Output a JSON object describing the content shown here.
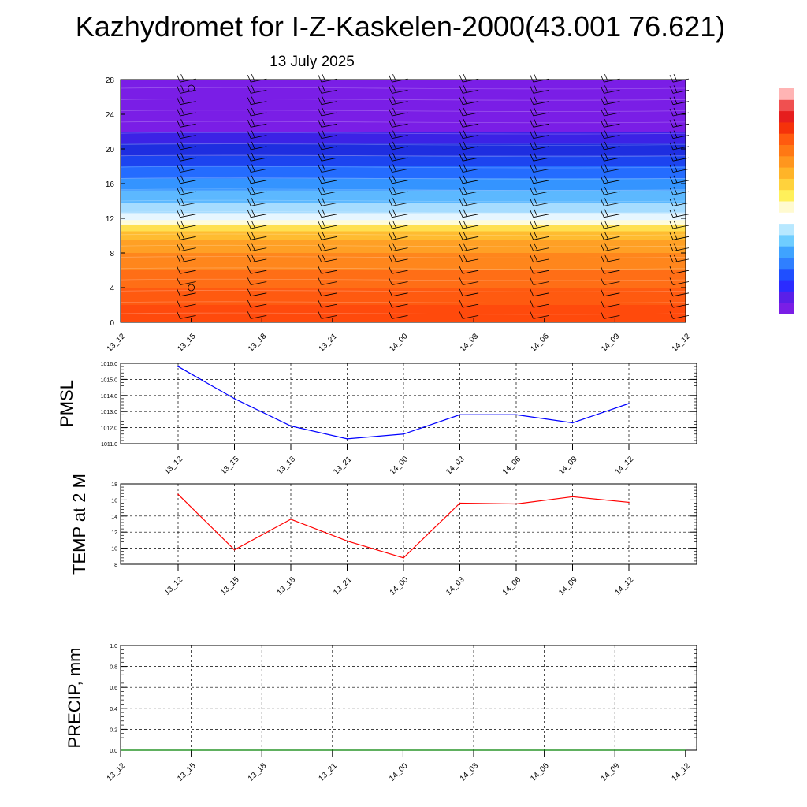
{
  "title": "Kazhydromet for I-Z-Kaskelen-2000(43.001 76.621)",
  "subtitle": "13 July 2025",
  "colorbar_colors": [
    "#7a1ee6",
    "#5a1fe8",
    "#2b2bff",
    "#1f4fff",
    "#2f7fff",
    "#3fa3ff",
    "#6fcdff",
    "#b8e8ff",
    "#ffffff",
    "#fffad0",
    "#fff05a",
    "#ffd23c",
    "#ffb428",
    "#ff961e",
    "#ff7814",
    "#ff5a0f",
    "#f5320a",
    "#e61e1e",
    "#f05050",
    "#ffb4b4"
  ],
  "chart_data": [
    {
      "type": "heatmap",
      "name": "cross-section",
      "x": [
        "13_12",
        "13_15",
        "13_18",
        "13_21",
        "14_00",
        "14_03",
        "14_06",
        "14_09",
        "14_12"
      ],
      "yticks": [
        "0",
        "4",
        "8",
        "12",
        "16",
        "20",
        "24",
        "28"
      ],
      "ylim": [
        0,
        28
      ],
      "bands": [
        {
          "from": 0,
          "to": 2,
          "color": "#ff4a0c"
        },
        {
          "from": 2,
          "to": 4,
          "color": "#ff5a10"
        },
        {
          "from": 4,
          "to": 6,
          "color": "#ff6e16"
        },
        {
          "from": 6,
          "to": 8,
          "color": "#ff861c"
        },
        {
          "from": 8,
          "to": 9.5,
          "color": "#ffa025"
        },
        {
          "from": 9.5,
          "to": 10.5,
          "color": "#ffbc30"
        },
        {
          "from": 10.5,
          "to": 11.2,
          "color": "#ffe050"
        },
        {
          "from": 11.2,
          "to": 11.8,
          "color": "#fffcd8"
        },
        {
          "from": 11.8,
          "to": 12.6,
          "color": "#e6f6ff"
        },
        {
          "from": 12.6,
          "to": 13.8,
          "color": "#a6dcff"
        },
        {
          "from": 13.8,
          "to": 15.2,
          "color": "#5cb8ff"
        },
        {
          "from": 15.2,
          "to": 16.6,
          "color": "#3494ff"
        },
        {
          "from": 16.6,
          "to": 18,
          "color": "#246cff"
        },
        {
          "from": 18,
          "to": 19.2,
          "color": "#1c44f0"
        },
        {
          "from": 19.2,
          "to": 20.6,
          "color": "#1e2ee0"
        },
        {
          "from": 20.6,
          "to": 22,
          "color": "#3c22e6"
        },
        {
          "from": 22,
          "to": 28,
          "color": "#7a1ee6"
        }
      ],
      "grid": false
    },
    {
      "type": "line",
      "name": "pmsl",
      "ylabel": "PMSL",
      "x": [
        "13_12",
        "13_15",
        "13_18",
        "13_21",
        "14_00",
        "14_03",
        "14_06",
        "14_09",
        "14_12"
      ],
      "values": [
        1015.8,
        1013.8,
        1012.1,
        1011.3,
        1011.6,
        1012.8,
        1012.8,
        1012.3,
        1013.5
      ],
      "yticks": [
        "1011.0",
        "1012.0",
        "1013.0",
        "1014.0",
        "1015.0",
        "1016.0"
      ],
      "ylim": [
        1011.0,
        1016.0
      ],
      "color": "#0000ff",
      "grid": true
    },
    {
      "type": "line",
      "name": "temp",
      "ylabel": "TEMP at 2 M",
      "x": [
        "13_12",
        "13_15",
        "13_18",
        "13_21",
        "14_00",
        "14_03",
        "14_06",
        "14_09",
        "14_12"
      ],
      "values": [
        16.7,
        9.8,
        13.6,
        10.9,
        8.8,
        15.6,
        15.5,
        16.4,
        15.7
      ],
      "yticks": [
        "8",
        "10",
        "12",
        "14",
        "16",
        "18"
      ],
      "ylim": [
        8,
        18
      ],
      "color": "#ff0000",
      "grid": true
    },
    {
      "type": "line",
      "name": "precip",
      "ylabel": "PRECIP, mm",
      "x": [
        "13_12",
        "13_15",
        "13_18",
        "13_21",
        "14_00",
        "14_03",
        "14_06",
        "14_09",
        "14_12"
      ],
      "values": [
        0,
        0,
        0,
        0,
        0,
        0,
        0,
        0,
        0
      ],
      "yticks": [
        "0.0",
        "0.2",
        "0.4",
        "0.6",
        "0.8",
        "1.0"
      ],
      "ylim": [
        0,
        1
      ],
      "color": "#008000",
      "grid": true
    }
  ]
}
